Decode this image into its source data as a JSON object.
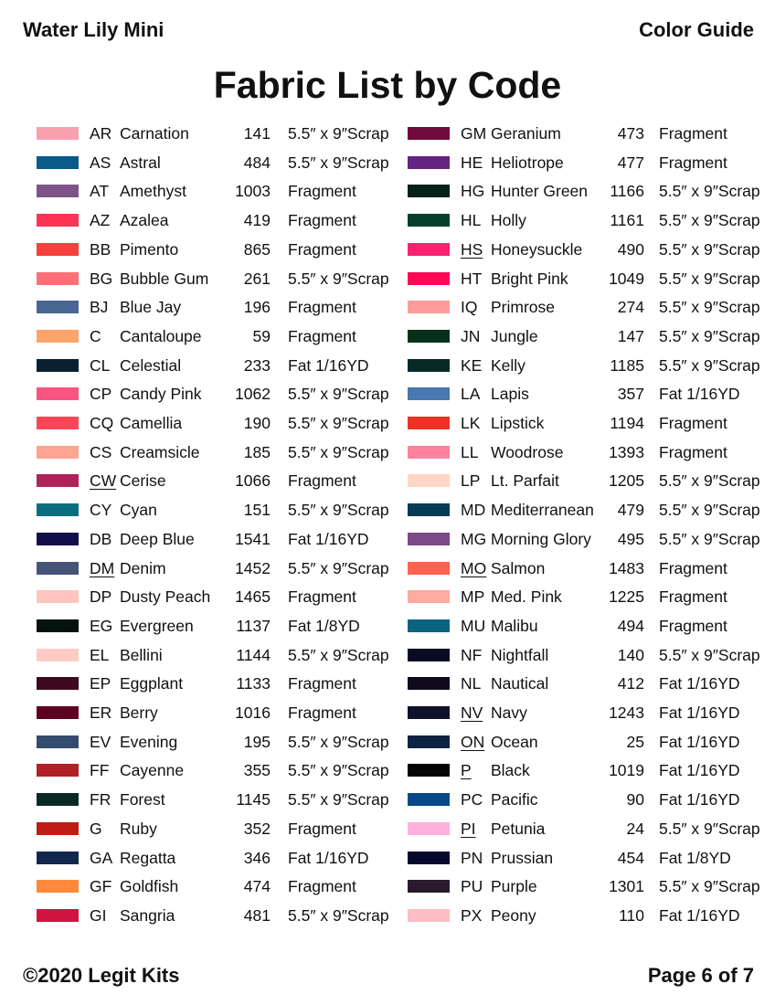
{
  "header": {
    "left": "Water Lily Mini",
    "right": "Color Guide"
  },
  "title": "Fabric List by Code",
  "footer": {
    "left": "©2020 Legit Kits",
    "right": "Page 6 of 7"
  },
  "columns": [
    [
      {
        "code": "AR",
        "name": "Carnation",
        "number": "141",
        "size": "5.5″ x 9″Scrap",
        "color": "#f9a0ae"
      },
      {
        "code": "AS",
        "name": "Astral",
        "number": "484",
        "size": "5.5″ x 9″Scrap",
        "color": "#0a5a8a"
      },
      {
        "code": "AT",
        "name": "Amethyst",
        "number": "1003",
        "size": "Fragment",
        "color": "#7e5488"
      },
      {
        "code": "AZ",
        "name": "Azalea",
        "number": "419",
        "size": "Fragment",
        "color": "#fc3355"
      },
      {
        "code": "BB",
        "name": "Pimento",
        "number": "865",
        "size": "Fragment",
        "color": "#f5403b"
      },
      {
        "code": "BG",
        "name": "Bubble Gum",
        "number": "261",
        "size": "5.5″ x 9″Scrap",
        "color": "#fc7078"
      },
      {
        "code": "BJ",
        "name": "Blue Jay",
        "number": "196",
        "size": "Fragment",
        "color": "#476692"
      },
      {
        "code": "C",
        "name": "Cantaloupe",
        "number": "59",
        "size": "Fragment",
        "color": "#fda46c"
      },
      {
        "code": "CL",
        "name": "Celestial",
        "number": "233",
        "size": "Fat 1/16YD",
        "color": "#0a1f30"
      },
      {
        "code": "CP",
        "name": "Candy Pink",
        "number": "1062",
        "size": "5.5″ x 9″Scrap",
        "color": "#fa5582"
      },
      {
        "code": "CQ",
        "name": "Camellia",
        "number": "190",
        "size": "5.5″ x 9″Scrap",
        "color": "#fc4558"
      },
      {
        "code": "CS",
        "name": "Creamsicle",
        "number": "185",
        "size": "5.5″ x 9″Scrap",
        "color": "#fda592"
      },
      {
        "code": "CW",
        "name": "Cerise",
        "number": "1066",
        "size": "Fragment",
        "color": "#b0235a",
        "underlined": true
      },
      {
        "code": "CY",
        "name": "Cyan",
        "number": "151",
        "size": "5.5″ x 9″Scrap",
        "color": "#0b6e80"
      },
      {
        "code": "DB",
        "name": "Deep Blue",
        "number": "1541",
        "size": "Fat 1/16YD",
        "color": "#130f4a"
      },
      {
        "code": "DM",
        "name": "Denim",
        "number": "1452",
        "size": "5.5″ x 9″Scrap",
        "color": "#465478",
        "underlined": true
      },
      {
        "code": "DP",
        "name": "Dusty Peach",
        "number": "1465",
        "size": "Fragment",
        "color": "#fdc5be"
      },
      {
        "code": "EG",
        "name": "Evergreen",
        "number": "1137",
        "size": "Fat 1/8YD",
        "color": "#04130f"
      },
      {
        "code": "EL",
        "name": "Bellini",
        "number": "1144",
        "size": "5.5″ x 9″Scrap",
        "color": "#fecbc4"
      },
      {
        "code": "EP",
        "name": "Eggplant",
        "number": "1133",
        "size": "Fragment",
        "color": "#3d0a1f"
      },
      {
        "code": "ER",
        "name": "Berry",
        "number": "1016",
        "size": "Fragment",
        "color": "#5e0020"
      },
      {
        "code": "EV",
        "name": "Evening",
        "number": "195",
        "size": "5.5″ x 9″Scrap",
        "color": "#334c6e"
      },
      {
        "code": "FF",
        "name": "Cayenne",
        "number": "355",
        "size": "5.5″ x 9″Scrap",
        "color": "#b12026"
      },
      {
        "code": "FR",
        "name": "Forest",
        "number": "1145",
        "size": "5.5″ x 9″Scrap",
        "color": "#082a22"
      },
      {
        "code": "G",
        "name": "Ruby",
        "number": "352",
        "size": "Fragment",
        "color": "#c01b15"
      },
      {
        "code": "GA",
        "name": "Regatta",
        "number": "346",
        "size": "Fat 1/16YD",
        "color": "#11284c"
      },
      {
        "code": "GF",
        "name": "Goldfish",
        "number": "474",
        "size": "Fragment",
        "color": "#ff8a3c"
      },
      {
        "code": "GI",
        "name": "Sangria",
        "number": "481",
        "size": "5.5″ x 9″Scrap",
        "color": "#cf1440"
      }
    ],
    [
      {
        "code": "GM",
        "name": "Geranium",
        "number": "473",
        "size": "Fragment",
        "color": "#730a3e"
      },
      {
        "code": "HE",
        "name": "Heliotrope",
        "number": "477",
        "size": "Fragment",
        "color": "#642480"
      },
      {
        "code": "HG",
        "name": "Hunter Green",
        "number": "1166",
        "size": "5.5″ x 9″Scrap",
        "color": "#06201a"
      },
      {
        "code": "HL",
        "name": "Holly",
        "number": "1161",
        "size": "5.5″ x 9″Scrap",
        "color": "#06402c"
      },
      {
        "code": "HS",
        "name": "Honeysuckle",
        "number": "490",
        "size": "5.5″ x 9″Scrap",
        "color": "#fc2272",
        "underlined": true
      },
      {
        "code": "HT",
        "name": "Bright Pink",
        "number": "1049",
        "size": "5.5″ x 9″Scrap",
        "color": "#ff0856"
      },
      {
        "code": "IQ",
        "name": "Primrose",
        "number": "274",
        "size": "5.5″ x 9″Scrap",
        "color": "#fd9c9a"
      },
      {
        "code": "JN",
        "name": "Jungle",
        "number": "147",
        "size": "5.5″ x 9″Scrap",
        "color": "#03301a"
      },
      {
        "code": "KE",
        "name": "Kelly",
        "number": "1185",
        "size": "5.5″ x 9″Scrap",
        "color": "#052a28"
      },
      {
        "code": "LA",
        "name": "Lapis",
        "number": "357",
        "size": "Fat 1/16YD",
        "color": "#4a78b0"
      },
      {
        "code": "LK",
        "name": "Lipstick",
        "number": "1194",
        "size": "Fragment",
        "color": "#ee3125"
      },
      {
        "code": "LL",
        "name": "Woodrose",
        "number": "1393",
        "size": "Fragment",
        "color": "#fd839e"
      },
      {
        "code": "LP",
        "name": "Lt. Parfait",
        "number": "1205",
        "size": "5.5″ x 9″Scrap",
        "color": "#fed6c6"
      },
      {
        "code": "MD",
        "name": "Mediterranean",
        "number": "479",
        "size": "5.5″ x 9″Scrap",
        "color": "#073a56"
      },
      {
        "code": "MG",
        "name": "Morning Glory",
        "number": "495",
        "size": "5.5″ x 9″Scrap",
        "color": "#7c4886"
      },
      {
        "code": "MO",
        "name": "Salmon",
        "number": "1483",
        "size": "Fragment",
        "color": "#ff6250",
        "underlined": true
      },
      {
        "code": "MP",
        "name": "Med. Pink",
        "number": "1225",
        "size": "Fragment",
        "color": "#fdaaa0"
      },
      {
        "code": "MU",
        "name": "Malibu",
        "number": "494",
        "size": "Fragment",
        "color": "#0a6480"
      },
      {
        "code": "NF",
        "name": "Nightfall",
        "number": "140",
        "size": "5.5″ x 9″Scrap",
        "color": "#0a0a22"
      },
      {
        "code": "NL",
        "name": "Nautical",
        "number": "412",
        "size": "Fat 1/16YD",
        "color": "#120a1e"
      },
      {
        "code": "NV",
        "name": "Navy",
        "number": "1243",
        "size": "Fat 1/16YD",
        "color": "#10122a",
        "underlined": true
      },
      {
        "code": "ON",
        "name": "Ocean",
        "number": "25",
        "size": "Fat 1/16YD",
        "color": "#0c2442",
        "underlined": true
      },
      {
        "code": "P",
        "name": "Black",
        "number": "1019",
        "size": "Fat 1/16YD",
        "color": "#050505",
        "underlined": true
      },
      {
        "code": "PC",
        "name": "Pacific",
        "number": "90",
        "size": "Fat 1/16YD",
        "color": "#064888"
      },
      {
        "code": "PI",
        "name": "Petunia",
        "number": "24",
        "size": "5.5″ x 9″Scrap",
        "color": "#fdb0dc",
        "underlined": true
      },
      {
        "code": "PN",
        "name": "Prussian",
        "number": "454",
        "size": "Fat 1/8YD",
        "color": "#08082e"
      },
      {
        "code": "PU",
        "name": "Purple",
        "number": "1301",
        "size": "5.5″ x 9″Scrap",
        "color": "#2a1a2e"
      },
      {
        "code": "PX",
        "name": "Peony",
        "number": "110",
        "size": "Fat 1/16YD",
        "color": "#febcc4"
      }
    ]
  ]
}
